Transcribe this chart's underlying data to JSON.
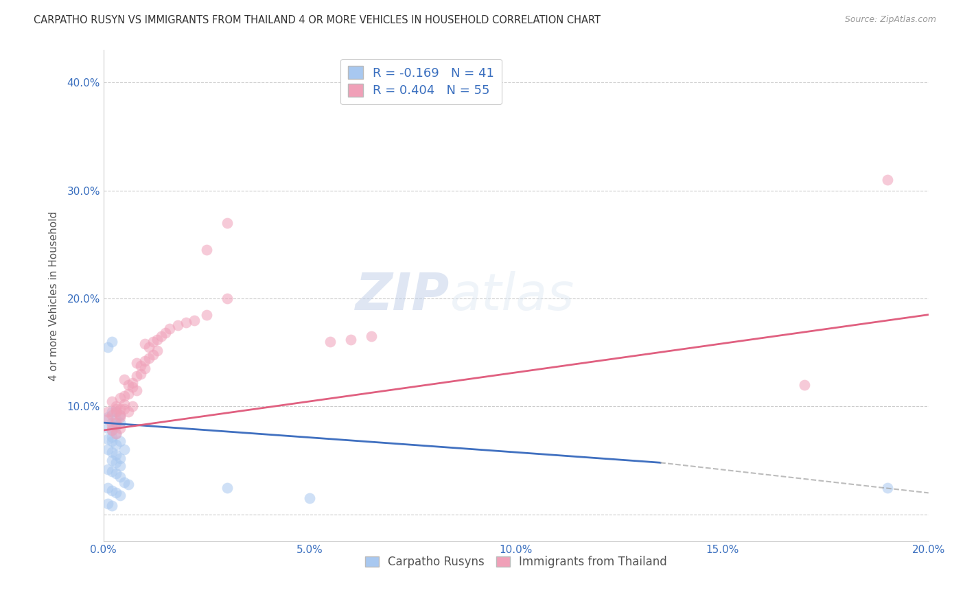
{
  "title": "CARPATHO RUSYN VS IMMIGRANTS FROM THAILAND 4 OR MORE VEHICLES IN HOUSEHOLD CORRELATION CHART",
  "source": "Source: ZipAtlas.com",
  "ylabel": "4 or more Vehicles in Household",
  "xlim": [
    0.0,
    0.2
  ],
  "ylim": [
    -0.025,
    0.43
  ],
  "xticks": [
    0.0,
    0.05,
    0.1,
    0.15,
    0.2
  ],
  "yticks": [
    0.0,
    0.1,
    0.2,
    0.3,
    0.4
  ],
  "xticklabels": [
    "0.0%",
    "5.0%",
    "10.0%",
    "15.0%",
    "20.0%"
  ],
  "yticklabels": [
    "",
    "10.0%",
    "20.0%",
    "30.0%",
    "40.0%"
  ],
  "blue_R": -0.169,
  "blue_N": 41,
  "pink_R": 0.404,
  "pink_N": 55,
  "blue_color": "#A8C8F0",
  "pink_color": "#F0A0B8",
  "blue_line_color": "#4070C0",
  "pink_line_color": "#E06080",
  "watermark_zip": "ZIP",
  "watermark_atlas": "atlas",
  "legend_label_blue": "Carpatho Rusyns",
  "legend_label_pink": "Immigrants from Thailand",
  "blue_points": [
    [
      0.001,
      0.155
    ],
    [
      0.002,
      0.16
    ],
    [
      0.001,
      0.09
    ],
    [
      0.002,
      0.095
    ],
    [
      0.003,
      0.095
    ],
    [
      0.002,
      0.085
    ],
    [
      0.003,
      0.088
    ],
    [
      0.004,
      0.092
    ],
    [
      0.001,
      0.08
    ],
    [
      0.002,
      0.078
    ],
    [
      0.003,
      0.082
    ],
    [
      0.004,
      0.085
    ],
    [
      0.002,
      0.072
    ],
    [
      0.003,
      0.075
    ],
    [
      0.001,
      0.07
    ],
    [
      0.002,
      0.068
    ],
    [
      0.003,
      0.065
    ],
    [
      0.004,
      0.068
    ],
    [
      0.001,
      0.06
    ],
    [
      0.002,
      0.058
    ],
    [
      0.003,
      0.055
    ],
    [
      0.004,
      0.052
    ],
    [
      0.005,
      0.06
    ],
    [
      0.002,
      0.05
    ],
    [
      0.003,
      0.048
    ],
    [
      0.004,
      0.045
    ],
    [
      0.001,
      0.042
    ],
    [
      0.002,
      0.04
    ],
    [
      0.003,
      0.038
    ],
    [
      0.004,
      0.035
    ],
    [
      0.005,
      0.03
    ],
    [
      0.006,
      0.028
    ],
    [
      0.001,
      0.025
    ],
    [
      0.002,
      0.022
    ],
    [
      0.003,
      0.02
    ],
    [
      0.004,
      0.018
    ],
    [
      0.001,
      0.01
    ],
    [
      0.002,
      0.008
    ],
    [
      0.03,
      0.025
    ],
    [
      0.05,
      0.015
    ],
    [
      0.19,
      0.025
    ]
  ],
  "pink_points": [
    [
      0.001,
      0.095
    ],
    [
      0.002,
      0.092
    ],
    [
      0.003,
      0.098
    ],
    [
      0.001,
      0.088
    ],
    [
      0.002,
      0.082
    ],
    [
      0.003,
      0.085
    ],
    [
      0.004,
      0.09
    ],
    [
      0.002,
      0.078
    ],
    [
      0.003,
      0.075
    ],
    [
      0.004,
      0.08
    ],
    [
      0.005,
      0.098
    ],
    [
      0.003,
      0.095
    ],
    [
      0.004,
      0.092
    ],
    [
      0.002,
      0.105
    ],
    [
      0.003,
      0.1
    ],
    [
      0.004,
      0.098
    ],
    [
      0.005,
      0.102
    ],
    [
      0.006,
      0.095
    ],
    [
      0.007,
      0.1
    ],
    [
      0.004,
      0.108
    ],
    [
      0.005,
      0.11
    ],
    [
      0.006,
      0.112
    ],
    [
      0.007,
      0.118
    ],
    [
      0.008,
      0.115
    ],
    [
      0.005,
      0.125
    ],
    [
      0.006,
      0.12
    ],
    [
      0.007,
      0.122
    ],
    [
      0.008,
      0.128
    ],
    [
      0.009,
      0.13
    ],
    [
      0.01,
      0.135
    ],
    [
      0.008,
      0.14
    ],
    [
      0.009,
      0.138
    ],
    [
      0.01,
      0.142
    ],
    [
      0.011,
      0.145
    ],
    [
      0.012,
      0.148
    ],
    [
      0.013,
      0.152
    ],
    [
      0.01,
      0.158
    ],
    [
      0.011,
      0.155
    ],
    [
      0.012,
      0.16
    ],
    [
      0.013,
      0.162
    ],
    [
      0.014,
      0.165
    ],
    [
      0.015,
      0.168
    ],
    [
      0.016,
      0.172
    ],
    [
      0.018,
      0.175
    ],
    [
      0.02,
      0.178
    ],
    [
      0.022,
      0.18
    ],
    [
      0.025,
      0.185
    ],
    [
      0.03,
      0.2
    ],
    [
      0.025,
      0.245
    ],
    [
      0.03,
      0.27
    ],
    [
      0.055,
      0.16
    ],
    [
      0.06,
      0.162
    ],
    [
      0.065,
      0.165
    ],
    [
      0.17,
      0.12
    ],
    [
      0.19,
      0.31
    ]
  ],
  "blue_line": [
    [
      0.0,
      0.085
    ],
    [
      0.135,
      0.048
    ]
  ],
  "pink_line": [
    [
      0.0,
      0.078
    ],
    [
      0.2,
      0.185
    ]
  ],
  "dash_line": [
    [
      0.135,
      0.048
    ],
    [
      0.2,
      0.02
    ]
  ]
}
